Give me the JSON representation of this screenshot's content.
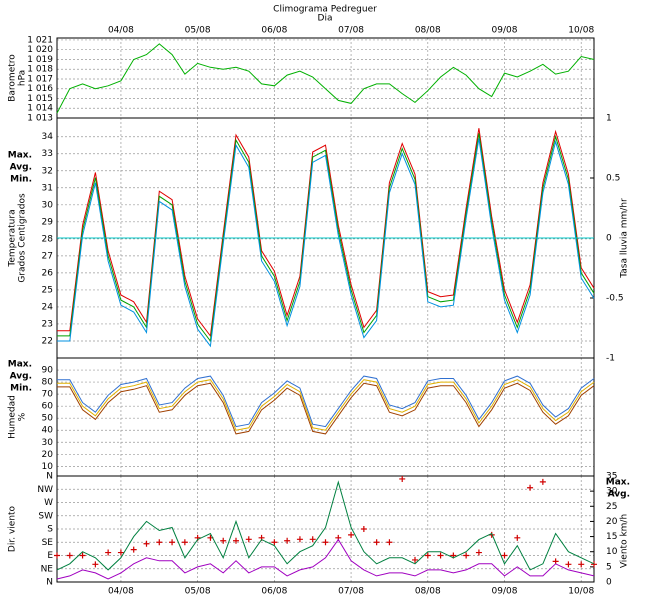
{
  "chart_data": [
    {
      "type": "line",
      "title": "Climograma Pedreguer",
      "subtitle": "Dia",
      "xaxis": "top",
      "categories": [
        null,
        null,
        null,
        null,
        null,
        "04/08",
        null,
        null,
        null,
        null,
        null,
        "05/08",
        null,
        null,
        null,
        null,
        null,
        "06/08",
        null,
        null,
        null,
        null,
        null,
        "07/08",
        null,
        null,
        null,
        null,
        null,
        "08/08",
        null,
        null,
        null,
        null,
        null,
        "09/08",
        null,
        null,
        null,
        null,
        null,
        "10/08",
        null
      ],
      "ylabel": [
        "Barometro",
        "hPa"
      ],
      "ylabel_color": "#00a000",
      "grid": true,
      "ylim": [
        1013,
        1021.2
      ],
      "yticks": [
        {
          "value": 1013,
          "label": "1 013"
        },
        {
          "value": 1014,
          "label": "1 014"
        },
        {
          "value": 1015,
          "label": "1 015"
        },
        {
          "value": 1016,
          "label": "1 016"
        },
        {
          "value": 1017,
          "label": "1 017"
        },
        {
          "value": 1018,
          "label": "1 018"
        },
        {
          "value": 1019,
          "label": "1 019"
        },
        {
          "value": 1020,
          "label": "1 020"
        },
        {
          "value": 1021,
          "label": "1 021"
        }
      ],
      "series": [
        {
          "color": "#00b000",
          "values": [
            1013.5,
            1016,
            1016.5,
            1016,
            1016.3,
            1016.8,
            1019,
            1019.5,
            1020.6,
            1019.5,
            1017.5,
            1018.6,
            1018.2,
            1018,
            1018.2,
            1017.8,
            1016.5,
            1016.3,
            1017.4,
            1017.8,
            1017.2,
            1016,
            1014.8,
            1014.5,
            1016,
            1016.5,
            1016.5,
            1015.5,
            1014.6,
            1015.8,
            1017.2,
            1018.2,
            1017.4,
            1016,
            1015.2,
            1017.6,
            1017.2,
            1017.8,
            1018.5,
            1017.5,
            1017.8,
            1019.3,
            1019
          ]
        }
      ]
    },
    {
      "type": "line",
      "ylabel": [
        "Temperatura",
        "Grados Centigrados"
      ],
      "ylabel_color": "#e00000",
      "y2label": "Tasa lluvia mm/hr",
      "y2label_color": "#00c8c8",
      "grid": true,
      "legend": "left",
      "ylim": [
        21,
        35.1
      ],
      "yticks": [
        22,
        23,
        24,
        25,
        26,
        27,
        28,
        29,
        30,
        31,
        32,
        33,
        34
      ],
      "y2lim": [
        -1,
        1
      ],
      "y2ticks": [
        -1,
        -0.5,
        0,
        0.5,
        1
      ],
      "series": [
        {
          "name": "Max.",
          "color": "#e00000",
          "values": [
            22.6,
            22.6,
            28.8,
            31.9,
            27.3,
            24.7,
            24.3,
            23.1,
            30.8,
            30.3,
            25.8,
            23.3,
            22.3,
            28.3,
            34.1,
            32.8,
            27.3,
            26.1,
            23.5,
            25.8,
            33.1,
            33.5,
            28.8,
            25.3,
            22.8,
            23.8,
            31.3,
            33.6,
            31.8,
            24.9,
            24.6,
            24.7,
            29.8,
            34.5,
            29.3,
            25,
            23.1,
            25.3,
            31.3,
            34.3,
            31.8,
            26.3,
            25.1
          ]
        },
        {
          "name": "Avg.",
          "color": "#00a000",
          "values": [
            22.3,
            22.3,
            28.5,
            31.6,
            27,
            24.4,
            24,
            22.8,
            30.5,
            30,
            25.5,
            23,
            22,
            28,
            33.8,
            32.5,
            27,
            25.8,
            23.2,
            25.5,
            32.8,
            33.2,
            28.5,
            25,
            22.5,
            23.5,
            31,
            33.3,
            31.5,
            24.6,
            24.3,
            24.4,
            29.5,
            34.2,
            29,
            24.7,
            22.8,
            25,
            31,
            34,
            31.5,
            26,
            24.8
          ]
        },
        {
          "name": "Min.",
          "color": "#0090e0",
          "values": [
            22,
            22,
            28.2,
            31.3,
            26.7,
            24.1,
            23.7,
            22.5,
            30.2,
            29.7,
            25.2,
            22.7,
            21.7,
            27.7,
            33.5,
            32.2,
            26.7,
            25.5,
            22.9,
            25.2,
            32.5,
            32.9,
            28.2,
            24.7,
            22.2,
            23.2,
            30.7,
            33,
            31.2,
            24.3,
            24,
            24.1,
            29.2,
            33.9,
            28.7,
            24.4,
            22.5,
            24.7,
            30.7,
            33.7,
            31.2,
            25.7,
            24.5
          ]
        },
        {
          "color": "#00c8c8",
          "axis": "y2",
          "values": [
            0,
            0,
            0,
            0,
            0,
            0,
            0,
            0,
            0,
            0,
            0,
            0,
            0,
            0,
            0,
            0,
            0,
            0,
            0,
            0,
            0,
            0,
            0,
            0,
            0,
            0,
            0,
            0,
            0,
            0,
            0,
            0,
            0,
            0,
            0,
            0,
            0,
            0,
            0,
            0,
            0,
            0,
            0
          ]
        }
      ]
    },
    {
      "type": "line",
      "ylabel": [
        "Humedad",
        "%"
      ],
      "ylabel_color": "#e04020",
      "grid": true,
      "legend": "left",
      "ylim": [
        2,
        100
      ],
      "yticks": [
        10,
        20,
        30,
        40,
        50,
        60,
        70,
        80,
        90
      ],
      "series": [
        {
          "name": "Max.",
          "color": "#3070d0",
          "values": [
            82,
            82,
            63,
            55,
            69,
            78,
            80,
            83,
            61,
            63,
            75,
            83,
            85,
            69,
            43,
            45,
            63,
            71,
            81,
            75,
            45,
            43,
            58,
            73,
            85,
            83,
            61,
            58,
            63,
            81,
            83,
            83,
            69,
            49,
            63,
            81,
            85,
            79,
            61,
            51,
            58,
            75,
            83
          ]
        },
        {
          "name": "Avg.",
          "color": "#e0b000",
          "values": [
            79,
            79,
            60,
            52,
            66,
            75,
            77,
            80,
            58,
            60,
            72,
            80,
            82,
            66,
            40,
            42,
            60,
            68,
            78,
            72,
            42,
            40,
            55,
            70,
            82,
            80,
            58,
            55,
            60,
            78,
            80,
            80,
            66,
            46,
            60,
            78,
            82,
            76,
            58,
            48,
            55,
            72,
            80
          ]
        },
        {
          "name": "Min.",
          "color": "#a04000",
          "values": [
            76,
            76,
            57,
            49,
            63,
            72,
            74,
            77,
            55,
            57,
            69,
            77,
            79,
            63,
            37,
            39,
            57,
            65,
            75,
            69,
            39,
            37,
            52,
            67,
            79,
            77,
            55,
            52,
            57,
            75,
            77,
            77,
            63,
            43,
            57,
            75,
            79,
            73,
            55,
            45,
            52,
            69,
            77
          ]
        }
      ]
    },
    {
      "type": "line",
      "xaxis": "bottom",
      "categories": [
        null,
        null,
        null,
        null,
        null,
        "04/08",
        null,
        null,
        null,
        null,
        null,
        "05/08",
        null,
        null,
        null,
        null,
        null,
        "06/08",
        null,
        null,
        null,
        null,
        null,
        "07/08",
        null,
        null,
        null,
        null,
        null,
        "08/08",
        null,
        null,
        null,
        null,
        null,
        "09/08",
        null,
        null,
        null,
        null,
        null,
        "10/08",
        null
      ],
      "ylabel": [
        "Dir. viento"
      ],
      "ylabel_color": "#e00000",
      "y2label": "Viento km/h",
      "y2label_color": "#a000c0",
      "grid": true,
      "legend": "right",
      "ylim": [
        0,
        360
      ],
      "yticks": [
        {
          "value": 0,
          "label": "N"
        },
        {
          "value": 45,
          "label": "NE"
        },
        {
          "value": 90,
          "label": "E"
        },
        {
          "value": 135,
          "label": "SE"
        },
        {
          "value": 180,
          "label": "S"
        },
        {
          "value": 225,
          "label": "SW"
        },
        {
          "value": 270,
          "label": "W"
        },
        {
          "value": 315,
          "label": "NW"
        },
        {
          "value": 360,
          "label": "N"
        }
      ],
      "y2lim": [
        0,
        35
      ],
      "y2ticks": [
        0,
        5,
        10,
        15,
        20,
        25,
        30,
        35
      ],
      "series": [
        {
          "color": "#d00000",
          "marker": "+",
          "values": [
            90,
            90,
            90,
            60,
            100,
            100,
            110,
            130,
            135,
            135,
            135,
            150,
            150,
            140,
            140,
            145,
            150,
            135,
            140,
            145,
            145,
            135,
            150,
            160,
            180,
            135,
            135,
            350,
            75,
            90,
            90,
            90,
            90,
            100,
            160,
            90,
            150,
            320,
            340,
            70,
            60,
            60,
            60
          ]
        },
        {
          "name": "Max.",
          "color": "#008040",
          "axis": "y2",
          "values": [
            4,
            6,
            10,
            8,
            4,
            8,
            15,
            20,
            17,
            18,
            8,
            14,
            16,
            8,
            20,
            8,
            14,
            12,
            6,
            10,
            12,
            18,
            33,
            18,
            10,
            6,
            8,
            8,
            6,
            10,
            10,
            8,
            10,
            14,
            16,
            6,
            12,
            4,
            6,
            16,
            10,
            8,
            6
          ]
        },
        {
          "name": "Avg.",
          "color": "#a000c0",
          "axis": "y2",
          "values": [
            1,
            2,
            4,
            3,
            1,
            3,
            6,
            8,
            7,
            7,
            3,
            5,
            6,
            3,
            7,
            3,
            5,
            5,
            2,
            4,
            5,
            8,
            14,
            7,
            4,
            2,
            3,
            3,
            2,
            4,
            4,
            3,
            4,
            6,
            6,
            2,
            5,
            2,
            2,
            6,
            4,
            3,
            2
          ]
        }
      ]
    }
  ]
}
